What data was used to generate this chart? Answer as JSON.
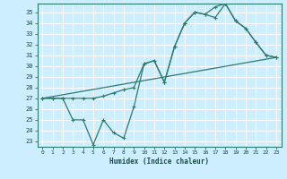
{
  "title": "",
  "xlabel": "Humidex (Indice chaleur)",
  "ylabel": "",
  "bg_color": "#cceeff",
  "grid_color": "#ffffff",
  "line_color": "#2d7a6e",
  "xlim": [
    -0.5,
    23.5
  ],
  "ylim": [
    22.5,
    35.8
  ],
  "yticks": [
    23,
    24,
    25,
    26,
    27,
    28,
    29,
    30,
    31,
    32,
    33,
    34,
    35
  ],
  "xticks": [
    0,
    1,
    2,
    3,
    4,
    5,
    6,
    7,
    8,
    9,
    10,
    11,
    12,
    13,
    14,
    15,
    16,
    17,
    18,
    19,
    20,
    21,
    22,
    23
  ],
  "line1_x": [
    0,
    1,
    2,
    3,
    4,
    5,
    6,
    7,
    8,
    9,
    10,
    11,
    12,
    13,
    14,
    15,
    16,
    17,
    18,
    19,
    20,
    21,
    22,
    23
  ],
  "line1_y": [
    27.0,
    27.0,
    27.0,
    25.0,
    25.0,
    22.7,
    25.0,
    23.8,
    23.3,
    26.2,
    30.2,
    30.5,
    28.5,
    31.8,
    34.0,
    35.0,
    34.8,
    35.5,
    35.8,
    34.2,
    33.5,
    32.2,
    31.0,
    30.8
  ],
  "line2_x": [
    0,
    1,
    2,
    3,
    4,
    5,
    6,
    7,
    8,
    9,
    10,
    11,
    12,
    13,
    14,
    15,
    16,
    17,
    18,
    19,
    20,
    21,
    22,
    23
  ],
  "line2_y": [
    27.0,
    27.0,
    27.0,
    27.0,
    27.0,
    27.0,
    27.2,
    27.5,
    27.8,
    28.0,
    30.2,
    30.5,
    28.5,
    31.8,
    34.0,
    35.0,
    34.8,
    34.5,
    35.8,
    34.2,
    33.5,
    32.2,
    31.0,
    30.8
  ],
  "line3_x": [
    0,
    23
  ],
  "line3_y": [
    27.0,
    30.8
  ]
}
